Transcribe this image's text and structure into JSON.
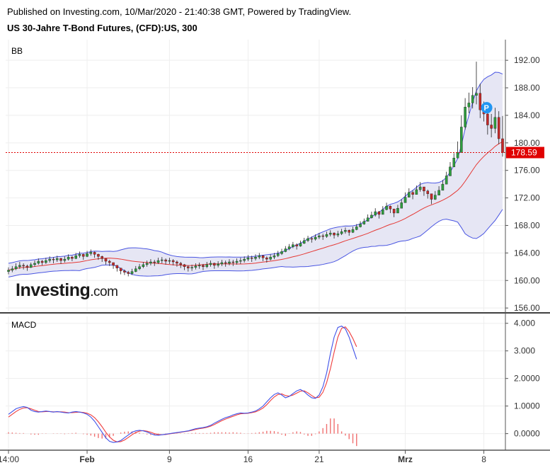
{
  "header": {
    "published": "Published on Investing.com, 10/Mar/2020 - 21:40:38 GMT, Powered by TradingView.",
    "title": "US 30-Jahre T-Bond Futures, (CFD):US, 300"
  },
  "logo": {
    "text": "Investing",
    "suffix": ".com"
  },
  "colors": {
    "up": "#2e9e3e",
    "down": "#c62828",
    "band": "#4a56e2",
    "band_fill": "#e6e6f4",
    "basis": "#e53935",
    "macd": "#3f51e8",
    "signal": "#ef3d3d",
    "hist": "#f07070",
    "price_tag": "#e00000",
    "marker": "#2196f3"
  },
  "chart_data": [
    {
      "type": "candlestick",
      "label": "BB",
      "ylim": [
        155.5,
        195
      ],
      "y_ticks": [
        "192.00",
        "188.00",
        "184.00",
        "180.00",
        "176.00",
        "172.00",
        "168.00",
        "164.00",
        "160.00",
        "156.00"
      ],
      "last_price": "178.59",
      "last_value": 178.59,
      "marker": "P",
      "x_ticks": [
        "14:00",
        "Feb",
        "9",
        "16",
        "21",
        "Mrz",
        "8"
      ],
      "x_tick_index": [
        0,
        21,
        43,
        64,
        83,
        106,
        127
      ],
      "closes": [
        161.5,
        161.7,
        162.0,
        162.2,
        162.1,
        161.9,
        162.3,
        162.5,
        162.8,
        162.6,
        162.9,
        163.1,
        163.0,
        163.2,
        162.9,
        163.1,
        163.4,
        163.2,
        163.6,
        163.8,
        163.5,
        163.9,
        164.1,
        163.8,
        163.5,
        163.2,
        162.8,
        162.6,
        162.2,
        161.8,
        161.4,
        161.2,
        161.0,
        161.3,
        161.7,
        162.0,
        162.3,
        162.5,
        162.7,
        162.6,
        162.9,
        163.0,
        162.8,
        162.9,
        162.7,
        162.5,
        162.3,
        162.0,
        161.8,
        161.9,
        162.1,
        162.2,
        162.0,
        162.3,
        162.5,
        162.2,
        162.4,
        162.6,
        162.5,
        162.7,
        162.6,
        162.8,
        162.9,
        163.1,
        163.3,
        163.2,
        163.4,
        163.6,
        163.3,
        163.1,
        163.4,
        163.6,
        163.9,
        164.2,
        164.6,
        164.9,
        165.2,
        165.0,
        165.4,
        165.8,
        166.1,
        166.0,
        166.3,
        166.5,
        166.4,
        166.7,
        166.9,
        166.6,
        166.8,
        167.1,
        167.3,
        167.0,
        167.4,
        167.8,
        168.2,
        168.6,
        169.1,
        169.5,
        170.0,
        169.6,
        170.3,
        170.8,
        170.4,
        169.8,
        170.5,
        171.3,
        172.1,
        172.8,
        172.5,
        173.2,
        173.6,
        173.0,
        172.6,
        171.8,
        172.4,
        173.1,
        174.0,
        175.2,
        176.5,
        177.8,
        178.6,
        182.3,
        185.2,
        185.8,
        186.9,
        187.2,
        184.8,
        184.2,
        182.6,
        182.1,
        183.7,
        180.6,
        178.59
      ],
      "highs": [
        161.9,
        162.1,
        162.5,
        162.7,
        162.5,
        162.3,
        162.6,
        162.9,
        163.2,
        163.0,
        163.3,
        163.5,
        163.4,
        163.6,
        163.3,
        163.5,
        163.8,
        163.6,
        164.0,
        164.2,
        163.9,
        164.3,
        164.5,
        164.2,
        163.9,
        163.6,
        163.2,
        163.0,
        162.6,
        162.2,
        161.8,
        161.6,
        161.4,
        161.7,
        162.1,
        162.4,
        162.7,
        162.9,
        163.1,
        163.0,
        163.3,
        163.4,
        163.2,
        163.3,
        163.1,
        162.9,
        162.7,
        162.4,
        162.2,
        162.3,
        162.5,
        162.6,
        162.4,
        162.7,
        162.9,
        162.6,
        162.8,
        163.0,
        162.9,
        163.1,
        163.0,
        163.2,
        163.3,
        163.5,
        163.7,
        163.6,
        163.8,
        164.0,
        163.7,
        163.5,
        163.8,
        164.0,
        164.3,
        164.6,
        165.0,
        165.3,
        165.6,
        165.4,
        165.8,
        166.2,
        166.5,
        166.4,
        166.7,
        166.9,
        166.8,
        167.1,
        167.3,
        167.0,
        167.2,
        167.5,
        167.7,
        167.4,
        167.8,
        168.2,
        168.6,
        169.0,
        169.6,
        170.0,
        170.5,
        170.1,
        170.8,
        171.3,
        170.9,
        170.3,
        171.0,
        171.8,
        172.8,
        173.4,
        173.1,
        173.8,
        174.3,
        173.6,
        173.2,
        172.4,
        173.0,
        173.7,
        174.6,
        175.8,
        177.2,
        178.5,
        180.2,
        184.0,
        186.5,
        187.3,
        188.1,
        191.8,
        188.6,
        186.0,
        184.3,
        184.2,
        185.1,
        184.6,
        183.9
      ],
      "lows": [
        160.9,
        161.2,
        161.5,
        161.7,
        161.6,
        161.4,
        161.8,
        162.0,
        162.3,
        162.2,
        162.4,
        162.6,
        162.5,
        162.7,
        162.4,
        162.6,
        162.9,
        162.8,
        163.1,
        163.3,
        163.0,
        163.4,
        163.6,
        163.3,
        163.0,
        162.7,
        162.3,
        162.1,
        161.7,
        161.3,
        160.9,
        160.8,
        160.6,
        160.8,
        161.2,
        161.5,
        161.8,
        162.0,
        162.2,
        162.1,
        162.4,
        162.5,
        162.3,
        162.4,
        162.2,
        162.0,
        161.8,
        161.5,
        161.3,
        161.4,
        161.6,
        161.7,
        161.5,
        161.8,
        162.0,
        161.7,
        161.9,
        162.1,
        162.0,
        162.2,
        162.1,
        162.3,
        162.4,
        162.6,
        162.8,
        162.7,
        162.9,
        163.1,
        162.8,
        162.6,
        162.9,
        163.1,
        163.4,
        163.7,
        164.1,
        164.4,
        164.7,
        164.5,
        164.9,
        165.3,
        165.6,
        165.5,
        165.8,
        166.0,
        165.9,
        166.2,
        166.4,
        166.1,
        166.3,
        166.6,
        166.8,
        166.5,
        166.9,
        167.3,
        167.7,
        168.1,
        168.6,
        169.0,
        169.3,
        169.0,
        169.7,
        170.2,
        169.8,
        169.2,
        169.9,
        170.6,
        171.4,
        172.1,
        171.8,
        172.5,
        172.9,
        172.3,
        171.9,
        171.1,
        171.7,
        172.4,
        173.3,
        174.4,
        175.7,
        177.0,
        177.8,
        178.9,
        181.9,
        184.3,
        185.0,
        185.6,
        183.6,
        183.1,
        181.2,
        180.8,
        181.4,
        179.8,
        178.0
      ]
    },
    {
      "type": "line",
      "label": "MACD",
      "ylim": [
        -0.6,
        4.25
      ],
      "y_ticks": [
        "4.000",
        "3.000",
        "2.0000",
        "1.0000",
        "0.0000"
      ],
      "series": [
        {
          "name": "",
          "values": [
            0.7,
            0.8,
            0.9,
            0.95,
            0.98,
            0.95,
            0.85,
            0.8,
            0.78,
            0.8,
            0.82,
            0.8,
            0.78,
            0.8,
            0.78,
            0.76,
            0.75,
            0.78,
            0.8,
            0.78,
            0.75,
            0.7,
            0.6,
            0.45,
            0.25,
            0.05,
            -0.15,
            -0.28,
            -0.32,
            -0.3,
            -0.25,
            -0.15,
            -0.05,
            0.05,
            0.1,
            0.12,
            0.1,
            0.06,
            0.0,
            -0.05,
            -0.06,
            -0.04,
            -0.02,
            0.0,
            0.02,
            0.04,
            0.06,
            0.08,
            0.1,
            0.14,
            0.18,
            0.2,
            0.22,
            0.25,
            0.3,
            0.38,
            0.45,
            0.52,
            0.58,
            0.62,
            0.68,
            0.72,
            0.75,
            0.74,
            0.75,
            0.78,
            0.82,
            0.9,
            1.0,
            1.15,
            1.3,
            1.42,
            1.48,
            1.4,
            1.3,
            1.35,
            1.45,
            1.55,
            1.6,
            1.52,
            1.4,
            1.3,
            1.28,
            1.4,
            1.7,
            2.2,
            2.9,
            3.5,
            3.85,
            3.9,
            3.8,
            3.5,
            3.1,
            2.7
          ]
        },
        {
          "name": "",
          "values": [
            0.6,
            0.7,
            0.8,
            0.88,
            0.93,
            0.94,
            0.9,
            0.85,
            0.8,
            0.79,
            0.8,
            0.8,
            0.79,
            0.79,
            0.79,
            0.78,
            0.76,
            0.76,
            0.77,
            0.78,
            0.77,
            0.74,
            0.68,
            0.58,
            0.43,
            0.25,
            0.05,
            -0.12,
            -0.24,
            -0.3,
            -0.29,
            -0.23,
            -0.14,
            -0.04,
            0.04,
            0.09,
            0.11,
            0.09,
            0.05,
            0.0,
            -0.03,
            -0.04,
            -0.03,
            -0.01,
            0.01,
            0.03,
            0.05,
            0.07,
            0.09,
            0.12,
            0.15,
            0.18,
            0.2,
            0.23,
            0.27,
            0.33,
            0.4,
            0.47,
            0.53,
            0.58,
            0.63,
            0.68,
            0.72,
            0.73,
            0.74,
            0.76,
            0.79,
            0.85,
            0.93,
            1.05,
            1.2,
            1.33,
            1.42,
            1.44,
            1.38,
            1.36,
            1.4,
            1.47,
            1.54,
            1.55,
            1.48,
            1.38,
            1.3,
            1.32,
            1.5,
            1.85,
            2.35,
            2.95,
            3.5,
            3.82,
            3.87,
            3.7,
            3.45,
            3.15
          ]
        }
      ],
      "histogram": [
        0.05,
        0.04,
        0.03,
        0.02,
        0.02,
        0.0,
        -0.03,
        -0.04,
        -0.04,
        -0.01,
        0.01,
        0.0,
        -0.01,
        0.01,
        -0.01,
        -0.02,
        -0.01,
        0.02,
        0.03,
        0.0,
        -0.02,
        -0.04,
        -0.07,
        -0.11,
        -0.16,
        -0.18,
        -0.18,
        -0.14,
        -0.08,
        -0.0,
        0.04,
        0.07,
        0.08,
        0.08,
        0.06,
        0.03,
        -0.01,
        -0.03,
        -0.05,
        -0.05,
        -0.03,
        0.0,
        0.01,
        0.01,
        0.01,
        0.01,
        0.01,
        0.01,
        0.01,
        0.02,
        0.03,
        0.02,
        0.02,
        0.02,
        0.03,
        0.05,
        0.05,
        0.05,
        0.05,
        0.04,
        0.05,
        0.04,
        0.03,
        0.01,
        0.01,
        0.02,
        0.03,
        0.05,
        0.07,
        0.1,
        0.1,
        0.09,
        0.06,
        -0.04,
        -0.08,
        -0.01,
        0.05,
        0.08,
        0.06,
        -0.03,
        -0.08,
        -0.08,
        -0.02,
        0.08,
        0.2,
        0.35,
        0.55,
        0.55,
        0.35,
        0.08,
        -0.07,
        -0.2,
        -0.35,
        -0.45
      ]
    }
  ]
}
